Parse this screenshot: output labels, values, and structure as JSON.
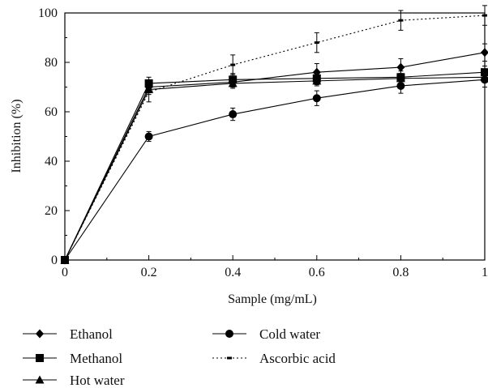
{
  "chart_data": {
    "type": "line",
    "title": "",
    "xlabel": "Sample (mg/mL)",
    "ylabel": "Inhibition (%)",
    "xlim": [
      0,
      1
    ],
    "ylim": [
      0,
      100
    ],
    "x_ticks": [
      0,
      0.2,
      0.4,
      0.6,
      0.8,
      1
    ],
    "x_tick_labels": [
      "0",
      "0.2",
      "0.4",
      "0.6",
      "0.8",
      "1"
    ],
    "y_ticks": [
      0,
      20,
      40,
      60,
      80,
      100
    ],
    "y_tick_labels": [
      "0",
      "20",
      "40",
      "60",
      "80",
      "100"
    ],
    "grid": false,
    "legend_position": "bottom",
    "x": [
      0,
      0.2,
      0.4,
      0.6,
      0.8,
      1
    ],
    "series": [
      {
        "name": "Ethanol",
        "marker": "diamond",
        "style": "solid",
        "color": "#000000",
        "values": [
          0,
          70,
          72,
          76,
          78,
          84
        ],
        "errors": [
          0,
          2,
          2,
          3.5,
          3.5,
          3.5
        ]
      },
      {
        "name": "Methanol",
        "marker": "square",
        "style": "solid",
        "color": "#000000",
        "values": [
          0,
          71.5,
          73,
          73.5,
          74,
          76
        ],
        "errors": [
          0,
          2.5,
          2.5,
          2.5,
          2.5,
          2.5
        ]
      },
      {
        "name": "Hot water",
        "marker": "triangle",
        "style": "solid",
        "color": "#000000",
        "values": [
          0,
          69,
          71.5,
          72.5,
          73.5,
          74
        ],
        "errors": [
          0,
          2,
          2,
          2,
          2,
          2
        ]
      },
      {
        "name": "Cold water",
        "marker": "circle",
        "style": "solid",
        "color": "#000000",
        "values": [
          0,
          50,
          59,
          65.5,
          70.5,
          73
        ],
        "errors": [
          0,
          2,
          2.5,
          3,
          3,
          3
        ]
      },
      {
        "name": "Ascorbic acid",
        "marker": "dash",
        "style": "dotted",
        "color": "#000000",
        "values": [
          0,
          68,
          79,
          88,
          97,
          99
        ],
        "errors": [
          0,
          4,
          4,
          4,
          4,
          4
        ]
      }
    ]
  }
}
